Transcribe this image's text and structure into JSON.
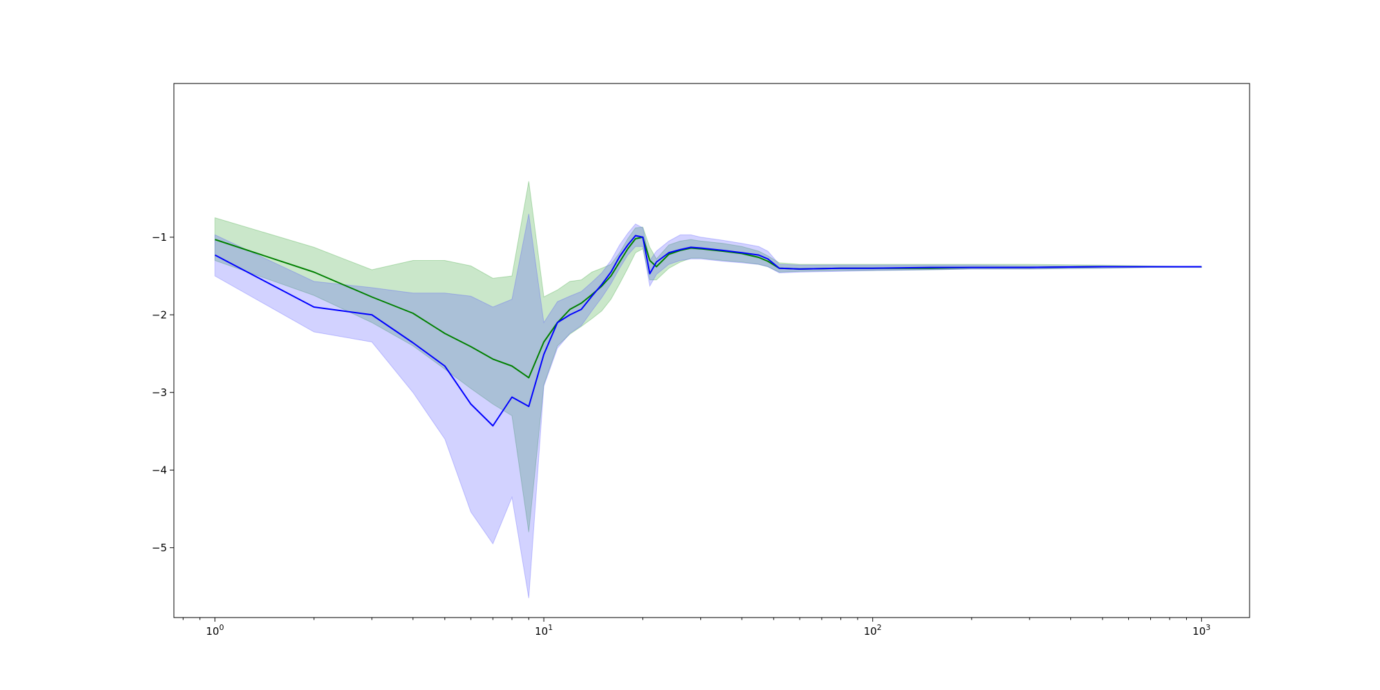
{
  "chart_data": {
    "type": "line",
    "title": "",
    "xlabel": "",
    "ylabel": "",
    "xscale": "log",
    "xlim": [
      0.75,
      1400
    ],
    "ylim": [
      -5.9,
      0.98
    ],
    "grid": false,
    "legend": "none",
    "xticks": [
      {
        "value": 1,
        "base": "10",
        "exp": "0"
      },
      {
        "value": 10,
        "base": "10",
        "exp": "1"
      },
      {
        "value": 100,
        "base": "10",
        "exp": "2"
      },
      {
        "value": 1000,
        "base": "10",
        "exp": "3"
      }
    ],
    "yticks": [
      {
        "value": -1,
        "label": "−1"
      },
      {
        "value": -2,
        "label": "−2"
      },
      {
        "value": -3,
        "label": "−3"
      },
      {
        "value": -4,
        "label": "−4"
      },
      {
        "value": -5,
        "label": "−5"
      }
    ],
    "series": [
      {
        "color": "#008000",
        "band_color": "#2ca02c",
        "x": [
          1,
          2,
          3,
          4,
          5,
          6,
          7,
          8,
          9,
          10,
          11,
          12,
          13,
          14,
          15,
          16,
          17,
          18,
          19,
          20,
          21,
          22,
          24,
          26,
          28,
          30,
          35,
          40,
          45,
          48,
          52,
          60,
          80,
          100,
          150,
          200,
          300,
          500,
          700,
          1000
        ],
        "y": [
          -1.03,
          -1.45,
          -1.77,
          -1.98,
          -2.24,
          -2.41,
          -2.57,
          -2.66,
          -2.81,
          -2.35,
          -2.1,
          -1.93,
          -1.85,
          -1.74,
          -1.63,
          -1.5,
          -1.32,
          -1.15,
          -1.02,
          -1.0,
          -1.3,
          -1.38,
          -1.22,
          -1.17,
          -1.14,
          -1.15,
          -1.18,
          -1.21,
          -1.26,
          -1.31,
          -1.4,
          -1.41,
          -1.4,
          -1.4,
          -1.4,
          -1.39,
          -1.39,
          -1.38,
          -1.38,
          -1.38
        ],
        "upper": [
          -0.75,
          -1.13,
          -1.42,
          -1.3,
          -1.3,
          -1.37,
          -1.53,
          -1.5,
          -0.28,
          -1.77,
          -1.68,
          -1.57,
          -1.55,
          -1.45,
          -1.4,
          -1.35,
          -1.2,
          -1.02,
          -0.88,
          -0.87,
          -1.13,
          -1.28,
          -1.1,
          -1.05,
          -1.03,
          -1.05,
          -1.08,
          -1.12,
          -1.18,
          -1.24,
          -1.33,
          -1.35,
          -1.35,
          -1.35,
          -1.35,
          -1.35,
          -1.35,
          -1.36,
          -1.37,
          -1.38
        ],
        "lower": [
          -1.3,
          -1.75,
          -2.1,
          -2.4,
          -2.7,
          -2.95,
          -3.15,
          -3.3,
          -4.8,
          -2.9,
          -2.4,
          -2.25,
          -2.15,
          -2.05,
          -1.95,
          -1.8,
          -1.6,
          -1.4,
          -1.2,
          -1.15,
          -1.55,
          -1.55,
          -1.4,
          -1.32,
          -1.27,
          -1.27,
          -1.3,
          -1.32,
          -1.35,
          -1.38,
          -1.45,
          -1.44,
          -1.43,
          -1.43,
          -1.42,
          -1.41,
          -1.41,
          -1.4,
          -1.39,
          -1.39
        ]
      },
      {
        "color": "#0000ff",
        "band_color": "#4c4cff",
        "x": [
          1,
          2,
          3,
          4,
          5,
          6,
          7,
          8,
          9,
          10,
          11,
          12,
          13,
          14,
          15,
          16,
          17,
          18,
          19,
          20,
          21,
          22,
          24,
          26,
          28,
          30,
          35,
          40,
          45,
          48,
          52,
          60,
          80,
          100,
          150,
          200,
          300,
          500,
          700,
          1000
        ],
        "y": [
          -1.23,
          -1.9,
          -2.0,
          -2.36,
          -2.66,
          -3.15,
          -3.43,
          -3.06,
          -3.18,
          -2.51,
          -2.1,
          -2.0,
          -1.93,
          -1.76,
          -1.61,
          -1.45,
          -1.25,
          -1.1,
          -0.98,
          -1.0,
          -1.47,
          -1.32,
          -1.2,
          -1.16,
          -1.13,
          -1.14,
          -1.17,
          -1.2,
          -1.23,
          -1.28,
          -1.4,
          -1.41,
          -1.4,
          -1.4,
          -1.39,
          -1.39,
          -1.39,
          -1.38,
          -1.38,
          -1.38
        ],
        "upper": [
          -0.97,
          -1.57,
          -1.65,
          -1.72,
          -1.72,
          -1.76,
          -1.9,
          -1.8,
          -0.7,
          -2.1,
          -1.83,
          -1.76,
          -1.7,
          -1.58,
          -1.46,
          -1.3,
          -1.1,
          -0.95,
          -0.83,
          -0.88,
          -1.3,
          -1.18,
          -1.05,
          -0.97,
          -0.97,
          -1.0,
          -1.04,
          -1.08,
          -1.12,
          -1.18,
          -1.35,
          -1.36,
          -1.36,
          -1.36,
          -1.36,
          -1.36,
          -1.37,
          -1.37,
          -1.38,
          -1.38
        ],
        "lower": [
          -1.5,
          -2.22,
          -2.35,
          -3.0,
          -3.6,
          -4.54,
          -4.95,
          -4.35,
          -5.65,
          -2.92,
          -2.43,
          -2.24,
          -2.14,
          -1.95,
          -1.78,
          -1.6,
          -1.4,
          -1.23,
          -1.12,
          -1.12,
          -1.63,
          -1.48,
          -1.35,
          -1.3,
          -1.28,
          -1.28,
          -1.31,
          -1.33,
          -1.35,
          -1.38,
          -1.46,
          -1.45,
          -1.44,
          -1.43,
          -1.42,
          -1.41,
          -1.41,
          -1.4,
          -1.39,
          -1.39
        ]
      }
    ]
  }
}
